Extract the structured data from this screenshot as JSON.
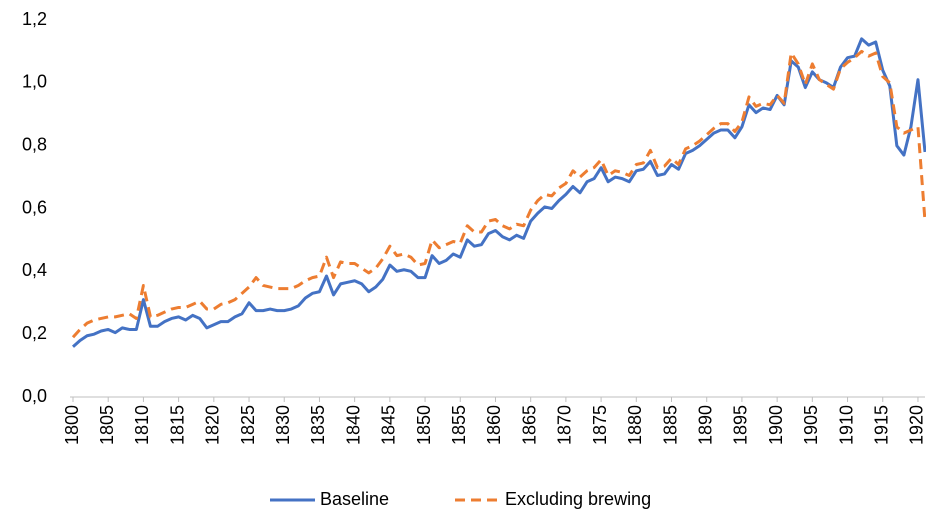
{
  "chart_data": {
    "type": "line",
    "x": [
      1800,
      1801,
      1802,
      1803,
      1804,
      1805,
      1806,
      1807,
      1808,
      1809,
      1810,
      1811,
      1812,
      1813,
      1814,
      1815,
      1816,
      1817,
      1818,
      1819,
      1820,
      1821,
      1822,
      1823,
      1824,
      1825,
      1826,
      1827,
      1828,
      1829,
      1830,
      1831,
      1832,
      1833,
      1834,
      1835,
      1836,
      1837,
      1838,
      1839,
      1840,
      1841,
      1842,
      1843,
      1844,
      1845,
      1846,
      1847,
      1848,
      1849,
      1850,
      1851,
      1852,
      1853,
      1854,
      1855,
      1856,
      1857,
      1858,
      1859,
      1860,
      1861,
      1862,
      1863,
      1864,
      1865,
      1866,
      1867,
      1868,
      1869,
      1870,
      1871,
      1872,
      1873,
      1874,
      1875,
      1876,
      1877,
      1878,
      1879,
      1880,
      1881,
      1882,
      1883,
      1884,
      1885,
      1886,
      1887,
      1888,
      1889,
      1890,
      1891,
      1892,
      1893,
      1894,
      1895,
      1896,
      1897,
      1898,
      1899,
      1900,
      1901,
      1902,
      1903,
      1904,
      1905,
      1906,
      1907,
      1908,
      1909,
      1910,
      1911,
      1912,
      1913,
      1914,
      1915,
      1916,
      1917,
      1918,
      1919,
      1920,
      1921
    ],
    "series": [
      {
        "name": "Baseline",
        "color": "#4472c4",
        "dashed": false,
        "values": [
          0.16,
          0.18,
          0.195,
          0.2,
          0.21,
          0.215,
          0.205,
          0.22,
          0.215,
          0.215,
          0.31,
          0.225,
          0.225,
          0.24,
          0.25,
          0.255,
          0.245,
          0.26,
          0.25,
          0.22,
          0.23,
          0.24,
          0.24,
          0.255,
          0.265,
          0.3,
          0.275,
          0.275,
          0.28,
          0.275,
          0.275,
          0.28,
          0.29,
          0.315,
          0.33,
          0.335,
          0.385,
          0.325,
          0.36,
          0.365,
          0.37,
          0.36,
          0.335,
          0.35,
          0.375,
          0.42,
          0.4,
          0.405,
          0.4,
          0.38,
          0.38,
          0.45,
          0.425,
          0.435,
          0.455,
          0.445,
          0.5,
          0.48,
          0.485,
          0.52,
          0.53,
          0.51,
          0.5,
          0.515,
          0.505,
          0.56,
          0.585,
          0.605,
          0.6,
          0.625,
          0.645,
          0.67,
          0.65,
          0.685,
          0.695,
          0.73,
          0.685,
          0.7,
          0.695,
          0.685,
          0.72,
          0.725,
          0.75,
          0.705,
          0.71,
          0.74,
          0.725,
          0.775,
          0.785,
          0.8,
          0.82,
          0.84,
          0.85,
          0.85,
          0.825,
          0.86,
          0.93,
          0.905,
          0.92,
          0.915,
          0.96,
          0.93,
          1.07,
          1.05,
          0.985,
          1.035,
          1.01,
          1.0,
          0.985,
          1.05,
          1.08,
          1.085,
          1.14,
          1.12,
          1.13,
          1.04,
          0.99,
          0.8,
          0.77,
          0.86,
          1.01,
          0.78
        ]
      },
      {
        "name": "Excluding brewing",
        "color": "#ed7d31",
        "dashed": true,
        "values": [
          0.19,
          0.215,
          0.235,
          0.245,
          0.25,
          0.255,
          0.255,
          0.26,
          0.265,
          0.25,
          0.355,
          0.255,
          0.26,
          0.27,
          0.28,
          0.285,
          0.285,
          0.295,
          0.305,
          0.28,
          0.28,
          0.295,
          0.3,
          0.31,
          0.33,
          0.35,
          0.38,
          0.355,
          0.35,
          0.345,
          0.345,
          0.345,
          0.355,
          0.37,
          0.38,
          0.385,
          0.445,
          0.38,
          0.43,
          0.425,
          0.425,
          0.41,
          0.395,
          0.41,
          0.44,
          0.48,
          0.45,
          0.455,
          0.445,
          0.42,
          0.425,
          0.5,
          0.475,
          0.485,
          0.495,
          0.49,
          0.545,
          0.525,
          0.525,
          0.56,
          0.565,
          0.545,
          0.535,
          0.55,
          0.545,
          0.595,
          0.625,
          0.645,
          0.64,
          0.665,
          0.68,
          0.72,
          0.7,
          0.72,
          0.73,
          0.755,
          0.705,
          0.72,
          0.715,
          0.705,
          0.74,
          0.745,
          0.785,
          0.73,
          0.735,
          0.76,
          0.74,
          0.79,
          0.8,
          0.815,
          0.835,
          0.855,
          0.87,
          0.87,
          0.845,
          0.875,
          0.955,
          0.925,
          0.935,
          0.93,
          0.96,
          0.935,
          1.095,
          1.06,
          0.995,
          1.06,
          1.01,
          0.995,
          0.98,
          1.045,
          1.065,
          1.08,
          1.1,
          1.085,
          1.095,
          1.02,
          1.0,
          0.86,
          0.84,
          0.85,
          0.86,
          0.56
        ]
      }
    ],
    "xlim": [
      1800,
      1921
    ],
    "xticks": [
      1800,
      1805,
      1810,
      1815,
      1820,
      1825,
      1830,
      1835,
      1840,
      1845,
      1850,
      1855,
      1860,
      1865,
      1870,
      1875,
      1880,
      1885,
      1890,
      1895,
      1900,
      1905,
      1910,
      1915,
      1920
    ],
    "ylim": [
      0,
      1.2
    ],
    "yticks": [
      {
        "value": 0,
        "label": "0,0"
      },
      {
        "value": 0.2,
        "label": "0,2"
      },
      {
        "value": 0.4,
        "label": "0,4"
      },
      {
        "value": 0.6,
        "label": "0,6"
      },
      {
        "value": 0.8,
        "label": "0,8"
      },
      {
        "value": 1.0,
        "label": "1,0"
      },
      {
        "value": 1.2,
        "label": "1,2"
      }
    ],
    "grid": false,
    "legend": "bottom"
  }
}
